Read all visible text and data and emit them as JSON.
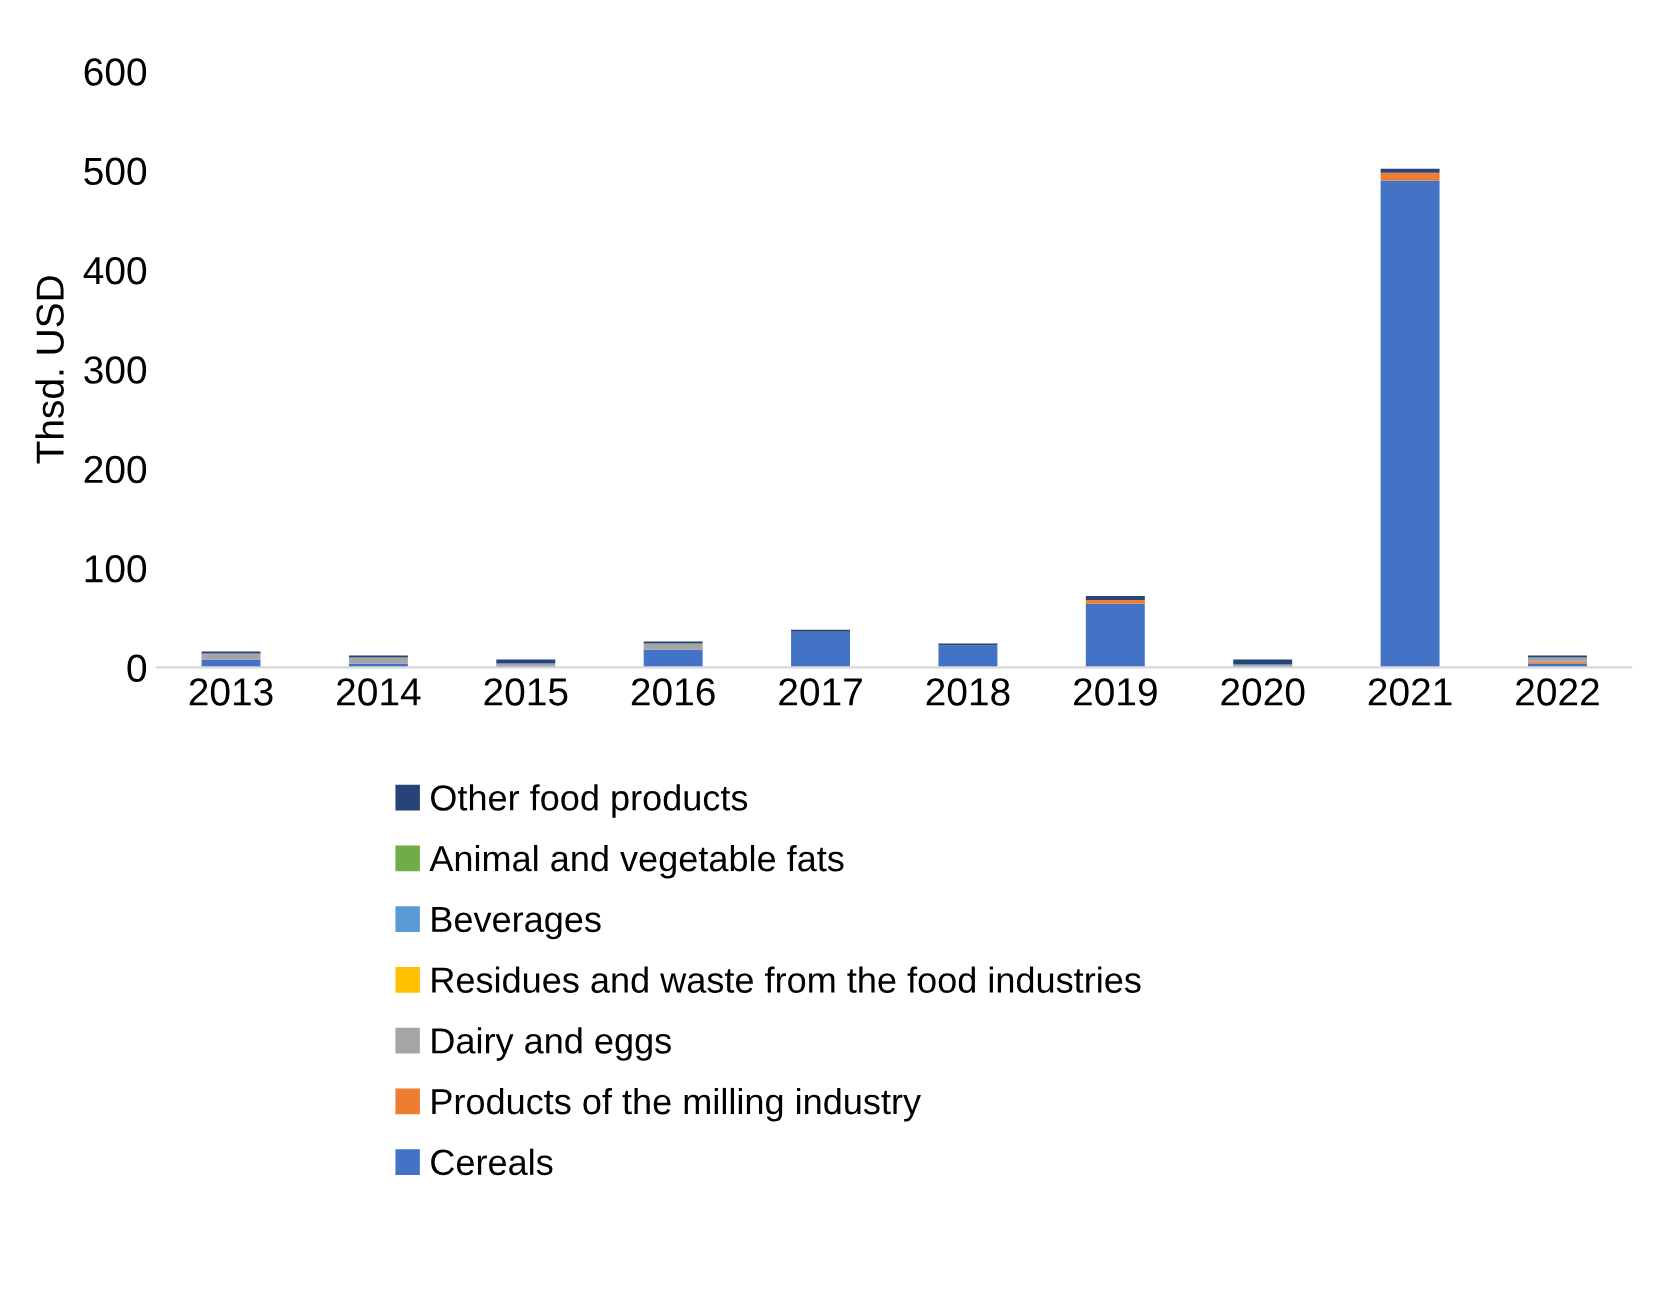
{
  "chart_data": {
    "type": "bar",
    "stacked": true,
    "ylabel": "Thsd. USD",
    "categories": [
      "2013",
      "2014",
      "2015",
      "2016",
      "2017",
      "2018",
      "2019",
      "2020",
      "2021",
      "2022"
    ],
    "series": [
      {
        "name": "Cereals",
        "color": "#4472c4",
        "values": [
          8,
          4,
          2,
          18,
          36,
          22,
          64,
          2,
          490,
          4
        ]
      },
      {
        "name": "Products of the milling industry",
        "color": "#ed7d31",
        "values": [
          0,
          0,
          0,
          0,
          0,
          0,
          4,
          0,
          8,
          2
        ]
      },
      {
        "name": "Dairy and eggs",
        "color": "#a5a5a5",
        "values": [
          6,
          6,
          2,
          6,
          0,
          0,
          0,
          1,
          0,
          4
        ]
      },
      {
        "name": "Residues and waste from the food industries",
        "color": "#ffc000",
        "values": [
          0,
          0,
          0,
          0,
          0,
          0,
          0,
          0,
          0,
          0
        ]
      },
      {
        "name": "Beverages",
        "color": "#5b9bd5",
        "values": [
          0,
          0,
          0,
          0,
          0,
          0,
          0,
          0,
          0,
          0
        ]
      },
      {
        "name": "Animal and vegetable fats",
        "color": "#70ad47",
        "values": [
          0,
          0,
          0,
          0,
          0,
          0,
          0,
          0,
          0,
          0
        ]
      },
      {
        "name": "Other food products",
        "color": "#264478",
        "values": [
          2,
          2,
          4,
          2,
          2,
          2,
          4,
          5,
          4,
          2
        ]
      }
    ],
    "ylim": [
      0,
      600
    ],
    "yticks": [
      0,
      100,
      200,
      300,
      400,
      500,
      600
    ],
    "grid": false,
    "legend": "bottom"
  }
}
